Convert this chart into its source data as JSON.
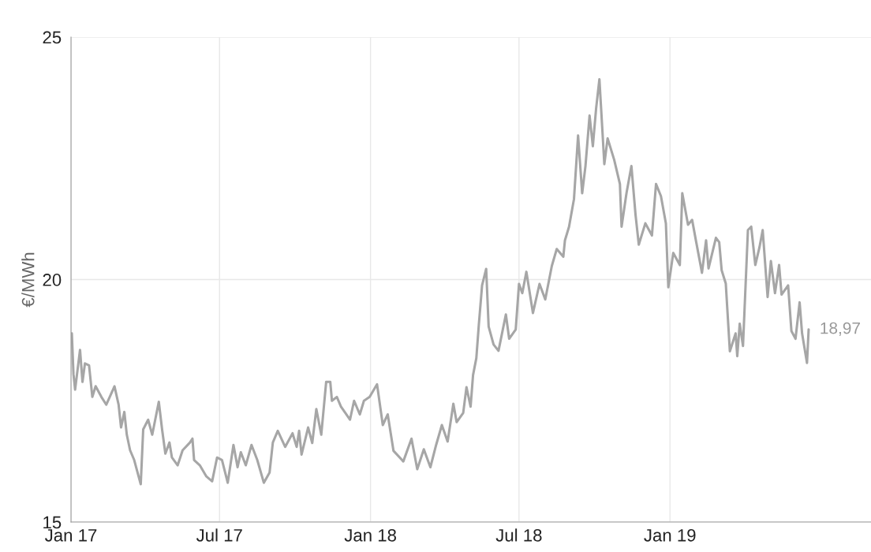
{
  "chart_data": {
    "type": "line",
    "ylabel": "€/MWh",
    "xlim": [
      "2017-01-01",
      "2019-09-03"
    ],
    "xticks": [
      {
        "value": "2017-01-01",
        "label": "Jan 17"
      },
      {
        "value": "2017-07-01",
        "label": "Jul 17"
      },
      {
        "value": "2018-01-01",
        "label": "Jan 18"
      },
      {
        "value": "2018-07-01",
        "label": "Jul 18"
      },
      {
        "value": "2019-01-01",
        "label": "Jan 19"
      }
    ],
    "ylim": [
      15,
      25
    ],
    "yticks": [
      15,
      20,
      25
    ],
    "grid": true,
    "legend": false,
    "marker": "none",
    "line_style": "solid",
    "x": [
      "2017-01-02",
      "2017-01-04",
      "2017-01-06",
      "2017-01-12",
      "2017-01-15",
      "2017-01-18",
      "2017-01-23",
      "2017-01-27",
      "2017-01-31",
      "2017-02-07",
      "2017-02-13",
      "2017-02-23",
      "2017-02-28",
      "2017-03-03",
      "2017-03-07",
      "2017-03-10",
      "2017-03-14",
      "2017-03-19",
      "2017-03-27",
      "2017-03-30",
      "2017-04-05",
      "2017-04-10",
      "2017-04-18",
      "2017-04-22",
      "2017-04-26",
      "2017-05-01",
      "2017-05-04",
      "2017-05-11",
      "2017-05-17",
      "2017-05-26",
      "2017-05-29",
      "2017-05-31",
      "2017-06-07",
      "2017-06-15",
      "2017-06-22",
      "2017-06-28",
      "2017-07-04",
      "2017-07-11",
      "2017-07-18",
      "2017-07-23",
      "2017-07-27",
      "2017-08-02",
      "2017-08-09",
      "2017-08-16",
      "2017-08-24",
      "2017-08-31",
      "2017-09-04",
      "2017-09-10",
      "2017-09-19",
      "2017-09-28",
      "2017-10-03",
      "2017-10-06",
      "2017-10-09",
      "2017-10-17",
      "2017-10-22",
      "2017-10-27",
      "2017-11-02",
      "2017-11-08",
      "2017-11-13",
      "2017-11-15",
      "2017-11-21",
      "2017-11-26",
      "2017-12-07",
      "2017-12-12",
      "2017-12-19",
      "2017-12-24",
      "2017-12-31",
      "2018-01-09",
      "2018-01-16",
      "2018-01-22",
      "2018-01-29",
      "2018-02-10",
      "2018-02-20",
      "2018-02-27",
      "2018-03-07",
      "2018-03-15",
      "2018-03-22",
      "2018-03-29",
      "2018-04-05",
      "2018-04-12",
      "2018-04-16",
      "2018-04-24",
      "2018-04-28",
      "2018-05-03",
      "2018-05-06",
      "2018-05-10",
      "2018-05-13",
      "2018-05-17",
      "2018-05-22",
      "2018-05-25",
      "2018-05-31",
      "2018-06-06",
      "2018-06-15",
      "2018-06-19",
      "2018-06-27",
      "2018-07-01",
      "2018-07-05",
      "2018-07-10",
      "2018-07-18",
      "2018-07-26",
      "2018-08-02",
      "2018-08-10",
      "2018-08-16",
      "2018-08-24",
      "2018-08-26",
      "2018-08-31",
      "2018-09-06",
      "2018-09-11",
      "2018-09-16",
      "2018-09-20",
      "2018-09-25",
      "2018-09-29",
      "2018-10-03",
      "2018-10-07",
      "2018-10-13",
      "2018-10-17",
      "2018-10-25",
      "2018-11-01",
      "2018-11-03",
      "2018-11-09",
      "2018-11-15",
      "2018-11-20",
      "2018-11-24",
      "2018-12-02",
      "2018-12-10",
      "2018-12-15",
      "2018-12-21",
      "2018-12-27",
      "2018-12-30",
      "2019-01-05",
      "2019-01-13",
      "2019-01-16",
      "2019-01-23",
      "2019-01-28",
      "2019-02-02",
      "2019-02-09",
      "2019-02-14",
      "2019-02-17",
      "2019-02-26",
      "2019-03-02",
      "2019-03-05",
      "2019-03-10",
      "2019-03-15",
      "2019-03-22",
      "2019-03-24",
      "2019-03-27",
      "2019-03-31",
      "2019-04-06",
      "2019-04-10",
      "2019-04-15",
      "2019-04-20",
      "2019-04-24",
      "2019-04-30",
      "2019-05-04",
      "2019-05-09",
      "2019-05-14",
      "2019-05-17",
      "2019-05-25",
      "2019-05-29",
      "2019-06-03",
      "2019-06-08",
      "2019-06-11",
      "2019-06-17",
      "2019-06-19"
    ],
    "series": [
      {
        "color": "#a6a6a6",
        "values": [
          18.89,
          18.05,
          17.73,
          18.55,
          17.89,
          18.27,
          18.23,
          17.58,
          17.8,
          17.58,
          17.42,
          17.8,
          17.42,
          16.95,
          17.27,
          16.8,
          16.48,
          16.28,
          15.78,
          16.91,
          17.11,
          16.8,
          17.48,
          16.91,
          16.41,
          16.64,
          16.33,
          16.17,
          16.48,
          16.64,
          16.72,
          16.28,
          16.17,
          15.94,
          15.84,
          16.33,
          16.28,
          15.81,
          16.59,
          16.13,
          16.44,
          16.17,
          16.59,
          16.28,
          15.81,
          16.02,
          16.64,
          16.88,
          16.55,
          16.83,
          16.55,
          16.88,
          16.39,
          16.95,
          16.63,
          17.33,
          16.8,
          17.89,
          17.89,
          17.5,
          17.58,
          17.38,
          17.11,
          17.5,
          17.22,
          17.5,
          17.58,
          17.84,
          17.0,
          17.22,
          16.47,
          16.25,
          16.72,
          16.09,
          16.5,
          16.13,
          16.59,
          17.0,
          16.66,
          17.44,
          17.06,
          17.25,
          17.78,
          17.38,
          18.03,
          18.38,
          19.06,
          19.88,
          20.22,
          19.03,
          18.66,
          18.53,
          19.28,
          18.78,
          18.97,
          19.91,
          19.72,
          20.16,
          19.31,
          19.91,
          19.59,
          20.28,
          20.63,
          20.47,
          20.81,
          21.09,
          21.66,
          22.97,
          21.78,
          22.34,
          23.38,
          22.75,
          23.53,
          24.13,
          22.38,
          22.91,
          22.47,
          21.97,
          21.09,
          21.78,
          22.34,
          21.34,
          20.72,
          21.16,
          20.91,
          21.97,
          21.72,
          21.16,
          19.84,
          20.55,
          20.3,
          21.78,
          21.13,
          21.23,
          20.77,
          20.14,
          20.81,
          20.23,
          20.86,
          20.77,
          20.19,
          19.92,
          18.52,
          18.89,
          18.42,
          19.09,
          18.63,
          21.02,
          21.09,
          20.3,
          20.66,
          21.02,
          19.64,
          20.38,
          19.72,
          20.3,
          19.69,
          19.88,
          18.94,
          18.78,
          19.53,
          18.89,
          18.28,
          18.97
        ],
        "value_labels": [
          null,
          null,
          null,
          null,
          null,
          null,
          null,
          null,
          null,
          null,
          null,
          null,
          null,
          null,
          null,
          null,
          null,
          null,
          null,
          null,
          null,
          null,
          null,
          null,
          null,
          null,
          null,
          null,
          null,
          null,
          null,
          null,
          null,
          null,
          null,
          null,
          null,
          null,
          null,
          null,
          null,
          null,
          null,
          null,
          null,
          null,
          null,
          null,
          null,
          null,
          null,
          null,
          null,
          null,
          null,
          null,
          null,
          null,
          null,
          null,
          null,
          null,
          null,
          null,
          null,
          null,
          null,
          null,
          null,
          null,
          null,
          null,
          null,
          null,
          null,
          null,
          null,
          null,
          null,
          null,
          null,
          null,
          null,
          null,
          null,
          null,
          null,
          null,
          null,
          null,
          null,
          null,
          null,
          null,
          null,
          null,
          null,
          null,
          null,
          null,
          null,
          null,
          null,
          null,
          null,
          null,
          null,
          null,
          null,
          null,
          null,
          null,
          null,
          null,
          null,
          null,
          null,
          null,
          null,
          null,
          null,
          null,
          null,
          null,
          null,
          null,
          null,
          null,
          null,
          null,
          null,
          null,
          null,
          null,
          null,
          null,
          null,
          null,
          null,
          null,
          null,
          null,
          null,
          null,
          null,
          null,
          null,
          null,
          null,
          null,
          null,
          null,
          null,
          null,
          null,
          null,
          null,
          null,
          null,
          null,
          null,
          null,
          null,
          "18,97"
        ]
      }
    ]
  }
}
